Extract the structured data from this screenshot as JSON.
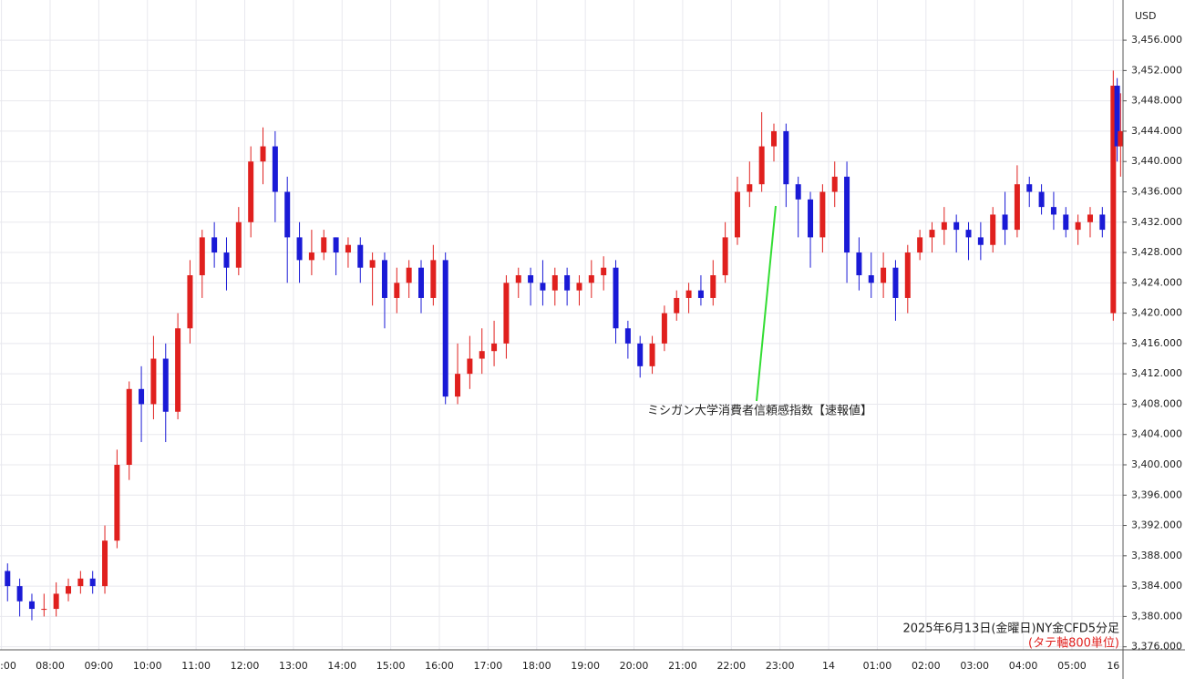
{
  "chart_data": {
    "type": "candlestick",
    "currency": "USD",
    "annotation": "ミシガン大学消費者信頼感指数【速報値】",
    "footer": "2025年6月13日(金曜日)NY金CFD5分足",
    "footer_note": "(タテ軸800単位)",
    "up_color": "#e0201e",
    "down_color": "#1a1ad6",
    "annotation_color": "#33dd33",
    "grid": true,
    "xlim": [
      -0.03,
      23.05
    ],
    "ylim": [
      3375.6,
      3461.3
    ],
    "xticks": [
      {
        "value": 0,
        "label": ":00"
      },
      {
        "value": 1,
        "label": "08:00"
      },
      {
        "value": 2,
        "label": "09:00"
      },
      {
        "value": 3,
        "label": "10:00"
      },
      {
        "value": 4,
        "label": "11:00"
      },
      {
        "value": 5,
        "label": "12:00"
      },
      {
        "value": 6,
        "label": "13:00"
      },
      {
        "value": 7,
        "label": "14:00"
      },
      {
        "value": 8,
        "label": "15:00"
      },
      {
        "value": 9,
        "label": "16:00"
      },
      {
        "value": 10,
        "label": "17:00"
      },
      {
        "value": 11,
        "label": "18:00"
      },
      {
        "value": 12,
        "label": "19:00"
      },
      {
        "value": 13,
        "label": "20:00"
      },
      {
        "value": 14,
        "label": "21:00"
      },
      {
        "value": 15,
        "label": "22:00"
      },
      {
        "value": 16,
        "label": "23:00"
      },
      {
        "value": 17,
        "label": "14"
      },
      {
        "value": 18,
        "label": "01:00"
      },
      {
        "value": 19,
        "label": "02:00"
      },
      {
        "value": 20,
        "label": "03:00"
      },
      {
        "value": 21,
        "label": "04:00"
      },
      {
        "value": 22,
        "label": "05:00"
      },
      {
        "value": 22.85,
        "label": "16"
      }
    ],
    "yticks": [
      {
        "value": 3376,
        "label": "3,376.000"
      },
      {
        "value": 3380,
        "label": "3,380.000"
      },
      {
        "value": 3384,
        "label": "3,384.000"
      },
      {
        "value": 3388,
        "label": "3,388.000"
      },
      {
        "value": 3392,
        "label": "3,392.000"
      },
      {
        "value": 3396,
        "label": "3,396.000"
      },
      {
        "value": 3400,
        "label": "3,400.000"
      },
      {
        "value": 3404,
        "label": "3,404.000"
      },
      {
        "value": 3408,
        "label": "3,408.000"
      },
      {
        "value": 3412,
        "label": "3,412.000"
      },
      {
        "value": 3416,
        "label": "3,416.000"
      },
      {
        "value": 3420,
        "label": "3,420.000"
      },
      {
        "value": 3424,
        "label": "3,424.000"
      },
      {
        "value": 3428,
        "label": "3,428.000"
      },
      {
        "value": 3432,
        "label": "3,432.000"
      },
      {
        "value": 3436,
        "label": "3,436.000"
      },
      {
        "value": 3440,
        "label": "3,440.000"
      },
      {
        "value": 3444,
        "label": "3,444.000"
      },
      {
        "value": 3448,
        "label": "3,448.000"
      },
      {
        "value": 3452,
        "label": "3,452.000"
      },
      {
        "value": 3456,
        "label": "3,456.000"
      }
    ],
    "candles": [
      {
        "x": 0.125,
        "o": 3386,
        "h": 3387,
        "l": 3382,
        "c": 3384
      },
      {
        "x": 0.375,
        "o": 3384,
        "h": 3385,
        "l": 3380,
        "c": 3382
      },
      {
        "x": 0.625,
        "o": 3382,
        "h": 3383,
        "l": 3379.5,
        "c": 3381
      },
      {
        "x": 0.875,
        "o": 3381,
        "h": 3383,
        "l": 3380,
        "c": 3381
      },
      {
        "x": 1.125,
        "o": 3381,
        "h": 3384.5,
        "l": 3380,
        "c": 3383
      },
      {
        "x": 1.375,
        "o": 3383,
        "h": 3385,
        "l": 3382,
        "c": 3384
      },
      {
        "x": 1.625,
        "o": 3384,
        "h": 3386,
        "l": 3383,
        "c": 3385
      },
      {
        "x": 1.875,
        "o": 3385,
        "h": 3386,
        "l": 3383,
        "c": 3384
      },
      {
        "x": 2.125,
        "o": 3384,
        "h": 3392,
        "l": 3383,
        "c": 3390
      },
      {
        "x": 2.375,
        "o": 3390,
        "h": 3402,
        "l": 3389,
        "c": 3400
      },
      {
        "x": 2.625,
        "o": 3400,
        "h": 3411,
        "l": 3398,
        "c": 3410
      },
      {
        "x": 2.875,
        "o": 3410,
        "h": 3413,
        "l": 3403,
        "c": 3408
      },
      {
        "x": 3.125,
        "o": 3408,
        "h": 3417,
        "l": 3406,
        "c": 3414
      },
      {
        "x": 3.375,
        "o": 3414,
        "h": 3416,
        "l": 3403,
        "c": 3407
      },
      {
        "x": 3.625,
        "o": 3407,
        "h": 3420,
        "l": 3406,
        "c": 3418
      },
      {
        "x": 3.875,
        "o": 3418,
        "h": 3427,
        "l": 3416,
        "c": 3425
      },
      {
        "x": 4.125,
        "o": 3425,
        "h": 3431,
        "l": 3422,
        "c": 3430
      },
      {
        "x": 4.375,
        "o": 3430,
        "h": 3432,
        "l": 3426,
        "c": 3428
      },
      {
        "x": 4.625,
        "o": 3428,
        "h": 3430,
        "l": 3423,
        "c": 3426
      },
      {
        "x": 4.875,
        "o": 3426,
        "h": 3434,
        "l": 3425,
        "c": 3432
      },
      {
        "x": 5.125,
        "o": 3432,
        "h": 3442,
        "l": 3430,
        "c": 3440
      },
      {
        "x": 5.375,
        "o": 3440,
        "h": 3444.5,
        "l": 3437,
        "c": 3442
      },
      {
        "x": 5.625,
        "o": 3442,
        "h": 3444,
        "l": 3432,
        "c": 3436
      },
      {
        "x": 5.875,
        "o": 3436,
        "h": 3438,
        "l": 3424,
        "c": 3430
      },
      {
        "x": 6.125,
        "o": 3430,
        "h": 3432,
        "l": 3424,
        "c": 3427
      },
      {
        "x": 6.375,
        "o": 3427,
        "h": 3431,
        "l": 3425,
        "c": 3428
      },
      {
        "x": 6.625,
        "o": 3428,
        "h": 3431,
        "l": 3427,
        "c": 3430
      },
      {
        "x": 6.875,
        "o": 3430,
        "h": 3430,
        "l": 3425,
        "c": 3428
      },
      {
        "x": 7.125,
        "o": 3428,
        "h": 3430,
        "l": 3426,
        "c": 3429
      },
      {
        "x": 7.375,
        "o": 3429,
        "h": 3430,
        "l": 3424,
        "c": 3426
      },
      {
        "x": 7.625,
        "o": 3426,
        "h": 3428,
        "l": 3421,
        "c": 3427
      },
      {
        "x": 7.875,
        "o": 3427,
        "h": 3428,
        "l": 3418,
        "c": 3422
      },
      {
        "x": 8.125,
        "o": 3422,
        "h": 3426,
        "l": 3420,
        "c": 3424
      },
      {
        "x": 8.375,
        "o": 3424,
        "h": 3427,
        "l": 3422,
        "c": 3426
      },
      {
        "x": 8.625,
        "o": 3426,
        "h": 3427,
        "l": 3420,
        "c": 3422
      },
      {
        "x": 8.875,
        "o": 3422,
        "h": 3429,
        "l": 3421,
        "c": 3427
      },
      {
        "x": 9.125,
        "o": 3427,
        "h": 3428,
        "l": 3408,
        "c": 3409
      },
      {
        "x": 9.375,
        "o": 3409,
        "h": 3416,
        "l": 3408,
        "c": 3412
      },
      {
        "x": 9.625,
        "o": 3412,
        "h": 3417,
        "l": 3410,
        "c": 3414
      },
      {
        "x": 9.875,
        "o": 3414,
        "h": 3418,
        "l": 3412,
        "c": 3415
      },
      {
        "x": 10.125,
        "o": 3415,
        "h": 3419,
        "l": 3413,
        "c": 3416
      },
      {
        "x": 10.375,
        "o": 3416,
        "h": 3425,
        "l": 3414,
        "c": 3424
      },
      {
        "x": 10.625,
        "o": 3424,
        "h": 3426,
        "l": 3422,
        "c": 3425
      },
      {
        "x": 10.875,
        "o": 3425,
        "h": 3426,
        "l": 3421,
        "c": 3424
      },
      {
        "x": 11.125,
        "o": 3424,
        "h": 3427,
        "l": 3421,
        "c": 3423
      },
      {
        "x": 11.375,
        "o": 3423,
        "h": 3426,
        "l": 3421,
        "c": 3425
      },
      {
        "x": 11.625,
        "o": 3425,
        "h": 3426,
        "l": 3421,
        "c": 3423
      },
      {
        "x": 11.875,
        "o": 3423,
        "h": 3425,
        "l": 3421,
        "c": 3424
      },
      {
        "x": 12.125,
        "o": 3424,
        "h": 3427,
        "l": 3422,
        "c": 3425
      },
      {
        "x": 12.375,
        "o": 3425,
        "h": 3427.5,
        "l": 3423,
        "c": 3426
      },
      {
        "x": 12.625,
        "o": 3426,
        "h": 3427,
        "l": 3416,
        "c": 3418
      },
      {
        "x": 12.875,
        "o": 3418,
        "h": 3419,
        "l": 3414,
        "c": 3416
      },
      {
        "x": 13.125,
        "o": 3416,
        "h": 3417,
        "l": 3411.5,
        "c": 3413
      },
      {
        "x": 13.375,
        "o": 3413,
        "h": 3417,
        "l": 3412,
        "c": 3416
      },
      {
        "x": 13.625,
        "o": 3416,
        "h": 3421,
        "l": 3415,
        "c": 3420
      },
      {
        "x": 13.875,
        "o": 3420,
        "h": 3423,
        "l": 3419,
        "c": 3422
      },
      {
        "x": 14.125,
        "o": 3422,
        "h": 3424,
        "l": 3420,
        "c": 3423
      },
      {
        "x": 14.375,
        "o": 3423,
        "h": 3425,
        "l": 3421,
        "c": 3422
      },
      {
        "x": 14.625,
        "o": 3422,
        "h": 3427,
        "l": 3421,
        "c": 3425
      },
      {
        "x": 14.875,
        "o": 3425,
        "h": 3432,
        "l": 3424,
        "c": 3430
      },
      {
        "x": 15.125,
        "o": 3430,
        "h": 3438,
        "l": 3429,
        "c": 3436
      },
      {
        "x": 15.375,
        "o": 3436,
        "h": 3440,
        "l": 3434,
        "c": 3437
      },
      {
        "x": 15.625,
        "o": 3437,
        "h": 3446.5,
        "l": 3436,
        "c": 3442
      },
      {
        "x": 15.875,
        "o": 3442,
        "h": 3445,
        "l": 3440,
        "c": 3444
      },
      {
        "x": 16.125,
        "o": 3444,
        "h": 3445,
        "l": 3434,
        "c": 3437
      },
      {
        "x": 16.375,
        "o": 3437,
        "h": 3438,
        "l": 3430,
        "c": 3435
      },
      {
        "x": 16.625,
        "o": 3435,
        "h": 3436,
        "l": 3426,
        "c": 3430
      },
      {
        "x": 16.875,
        "o": 3430,
        "h": 3437,
        "l": 3428,
        "c": 3436
      },
      {
        "x": 17.125,
        "o": 3436,
        "h": 3440,
        "l": 3434,
        "c": 3438
      },
      {
        "x": 17.375,
        "o": 3438,
        "h": 3440,
        "l": 3424,
        "c": 3428
      },
      {
        "x": 17.625,
        "o": 3428,
        "h": 3430,
        "l": 3423,
        "c": 3425
      },
      {
        "x": 17.875,
        "o": 3425,
        "h": 3428,
        "l": 3422,
        "c": 3424
      },
      {
        "x": 18.125,
        "o": 3424,
        "h": 3428,
        "l": 3422,
        "c": 3426
      },
      {
        "x": 18.375,
        "o": 3426,
        "h": 3427,
        "l": 3419,
        "c": 3422
      },
      {
        "x": 18.625,
        "o": 3422,
        "h": 3429,
        "l": 3420,
        "c": 3428
      },
      {
        "x": 18.875,
        "o": 3428,
        "h": 3431,
        "l": 3427,
        "c": 3430
      },
      {
        "x": 19.125,
        "o": 3430,
        "h": 3432,
        "l": 3428,
        "c": 3431
      },
      {
        "x": 19.375,
        "o": 3431,
        "h": 3434,
        "l": 3429,
        "c": 3432
      },
      {
        "x": 19.625,
        "o": 3432,
        "h": 3433,
        "l": 3428,
        "c": 3431
      },
      {
        "x": 19.875,
        "o": 3431,
        "h": 3432,
        "l": 3427,
        "c": 3430
      },
      {
        "x": 20.125,
        "o": 3430,
        "h": 3432,
        "l": 3427,
        "c": 3429
      },
      {
        "x": 20.375,
        "o": 3429,
        "h": 3434,
        "l": 3428,
        "c": 3433
      },
      {
        "x": 20.625,
        "o": 3433,
        "h": 3436,
        "l": 3429,
        "c": 3431
      },
      {
        "x": 20.875,
        "o": 3431,
        "h": 3439.5,
        "l": 3430,
        "c": 3437
      },
      {
        "x": 21.125,
        "o": 3437,
        "h": 3438,
        "l": 3434,
        "c": 3436
      },
      {
        "x": 21.375,
        "o": 3436,
        "h": 3437,
        "l": 3433,
        "c": 3434
      },
      {
        "x": 21.625,
        "o": 3434,
        "h": 3436,
        "l": 3431,
        "c": 3433
      },
      {
        "x": 21.875,
        "o": 3433,
        "h": 3434,
        "l": 3430,
        "c": 3431
      },
      {
        "x": 22.125,
        "o": 3431,
        "h": 3433,
        "l": 3429,
        "c": 3432
      },
      {
        "x": 22.375,
        "o": 3432,
        "h": 3434,
        "l": 3430,
        "c": 3433
      },
      {
        "x": 22.625,
        "o": 3433,
        "h": 3434,
        "l": 3430,
        "c": 3431
      },
      {
        "x": 22.85,
        "o": 3420,
        "h": 3452,
        "l": 3419,
        "c": 3450
      },
      {
        "x": 22.93,
        "o": 3450,
        "h": 3451,
        "l": 3440,
        "c": 3442
      },
      {
        "x": 23.0,
        "o": 3442,
        "h": 3449,
        "l": 3438,
        "c": 3444
      }
    ]
  }
}
